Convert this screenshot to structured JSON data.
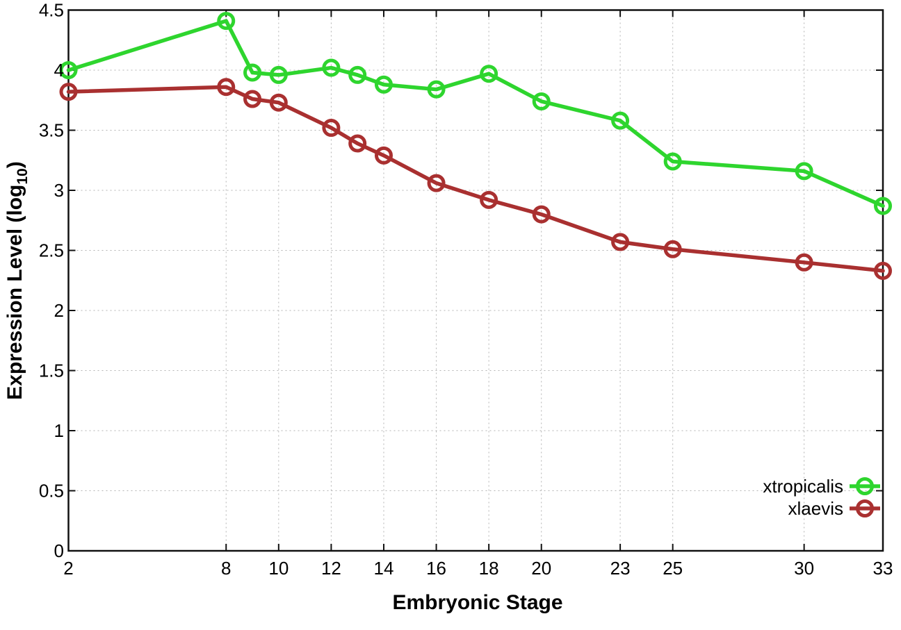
{
  "chart_data": {
    "type": "line",
    "xlabel": "Embryonic Stage",
    "ylabel": {
      "main": "Expression Level (log",
      "sub": "10",
      "end": ")"
    },
    "x": [
      2,
      8,
      9,
      10,
      12,
      13,
      14,
      16,
      18,
      20,
      23,
      25,
      30,
      33
    ],
    "series": [
      {
        "name": "xtropicalis",
        "color": "#2ed52e",
        "values": [
          4.0,
          4.41,
          3.98,
          3.96,
          4.02,
          3.96,
          3.88,
          3.84,
          3.97,
          3.74,
          3.58,
          3.24,
          3.16,
          2.87
        ]
      },
      {
        "name": "xlaevis",
        "color": "#a93030",
        "values": [
          3.82,
          3.86,
          3.76,
          3.73,
          3.52,
          3.39,
          3.29,
          3.06,
          2.92,
          2.8,
          2.57,
          2.51,
          2.4,
          2.33
        ]
      }
    ],
    "xlim": [
      2,
      33
    ],
    "ylim": [
      0,
      4.5
    ],
    "xticks": [
      2,
      8,
      10,
      12,
      14,
      16,
      18,
      20,
      23,
      25,
      30,
      33
    ],
    "yticks": [
      0,
      0.5,
      1,
      1.5,
      2,
      2.5,
      3,
      3.5,
      4,
      4.5
    ],
    "grid": true,
    "legend_position": "inside-bottom-right",
    "marker": "open-circle",
    "colors": {
      "background": "#ffffff",
      "grid": "#b3b3b3",
      "axis": "#111111",
      "text": "#000000"
    }
  }
}
